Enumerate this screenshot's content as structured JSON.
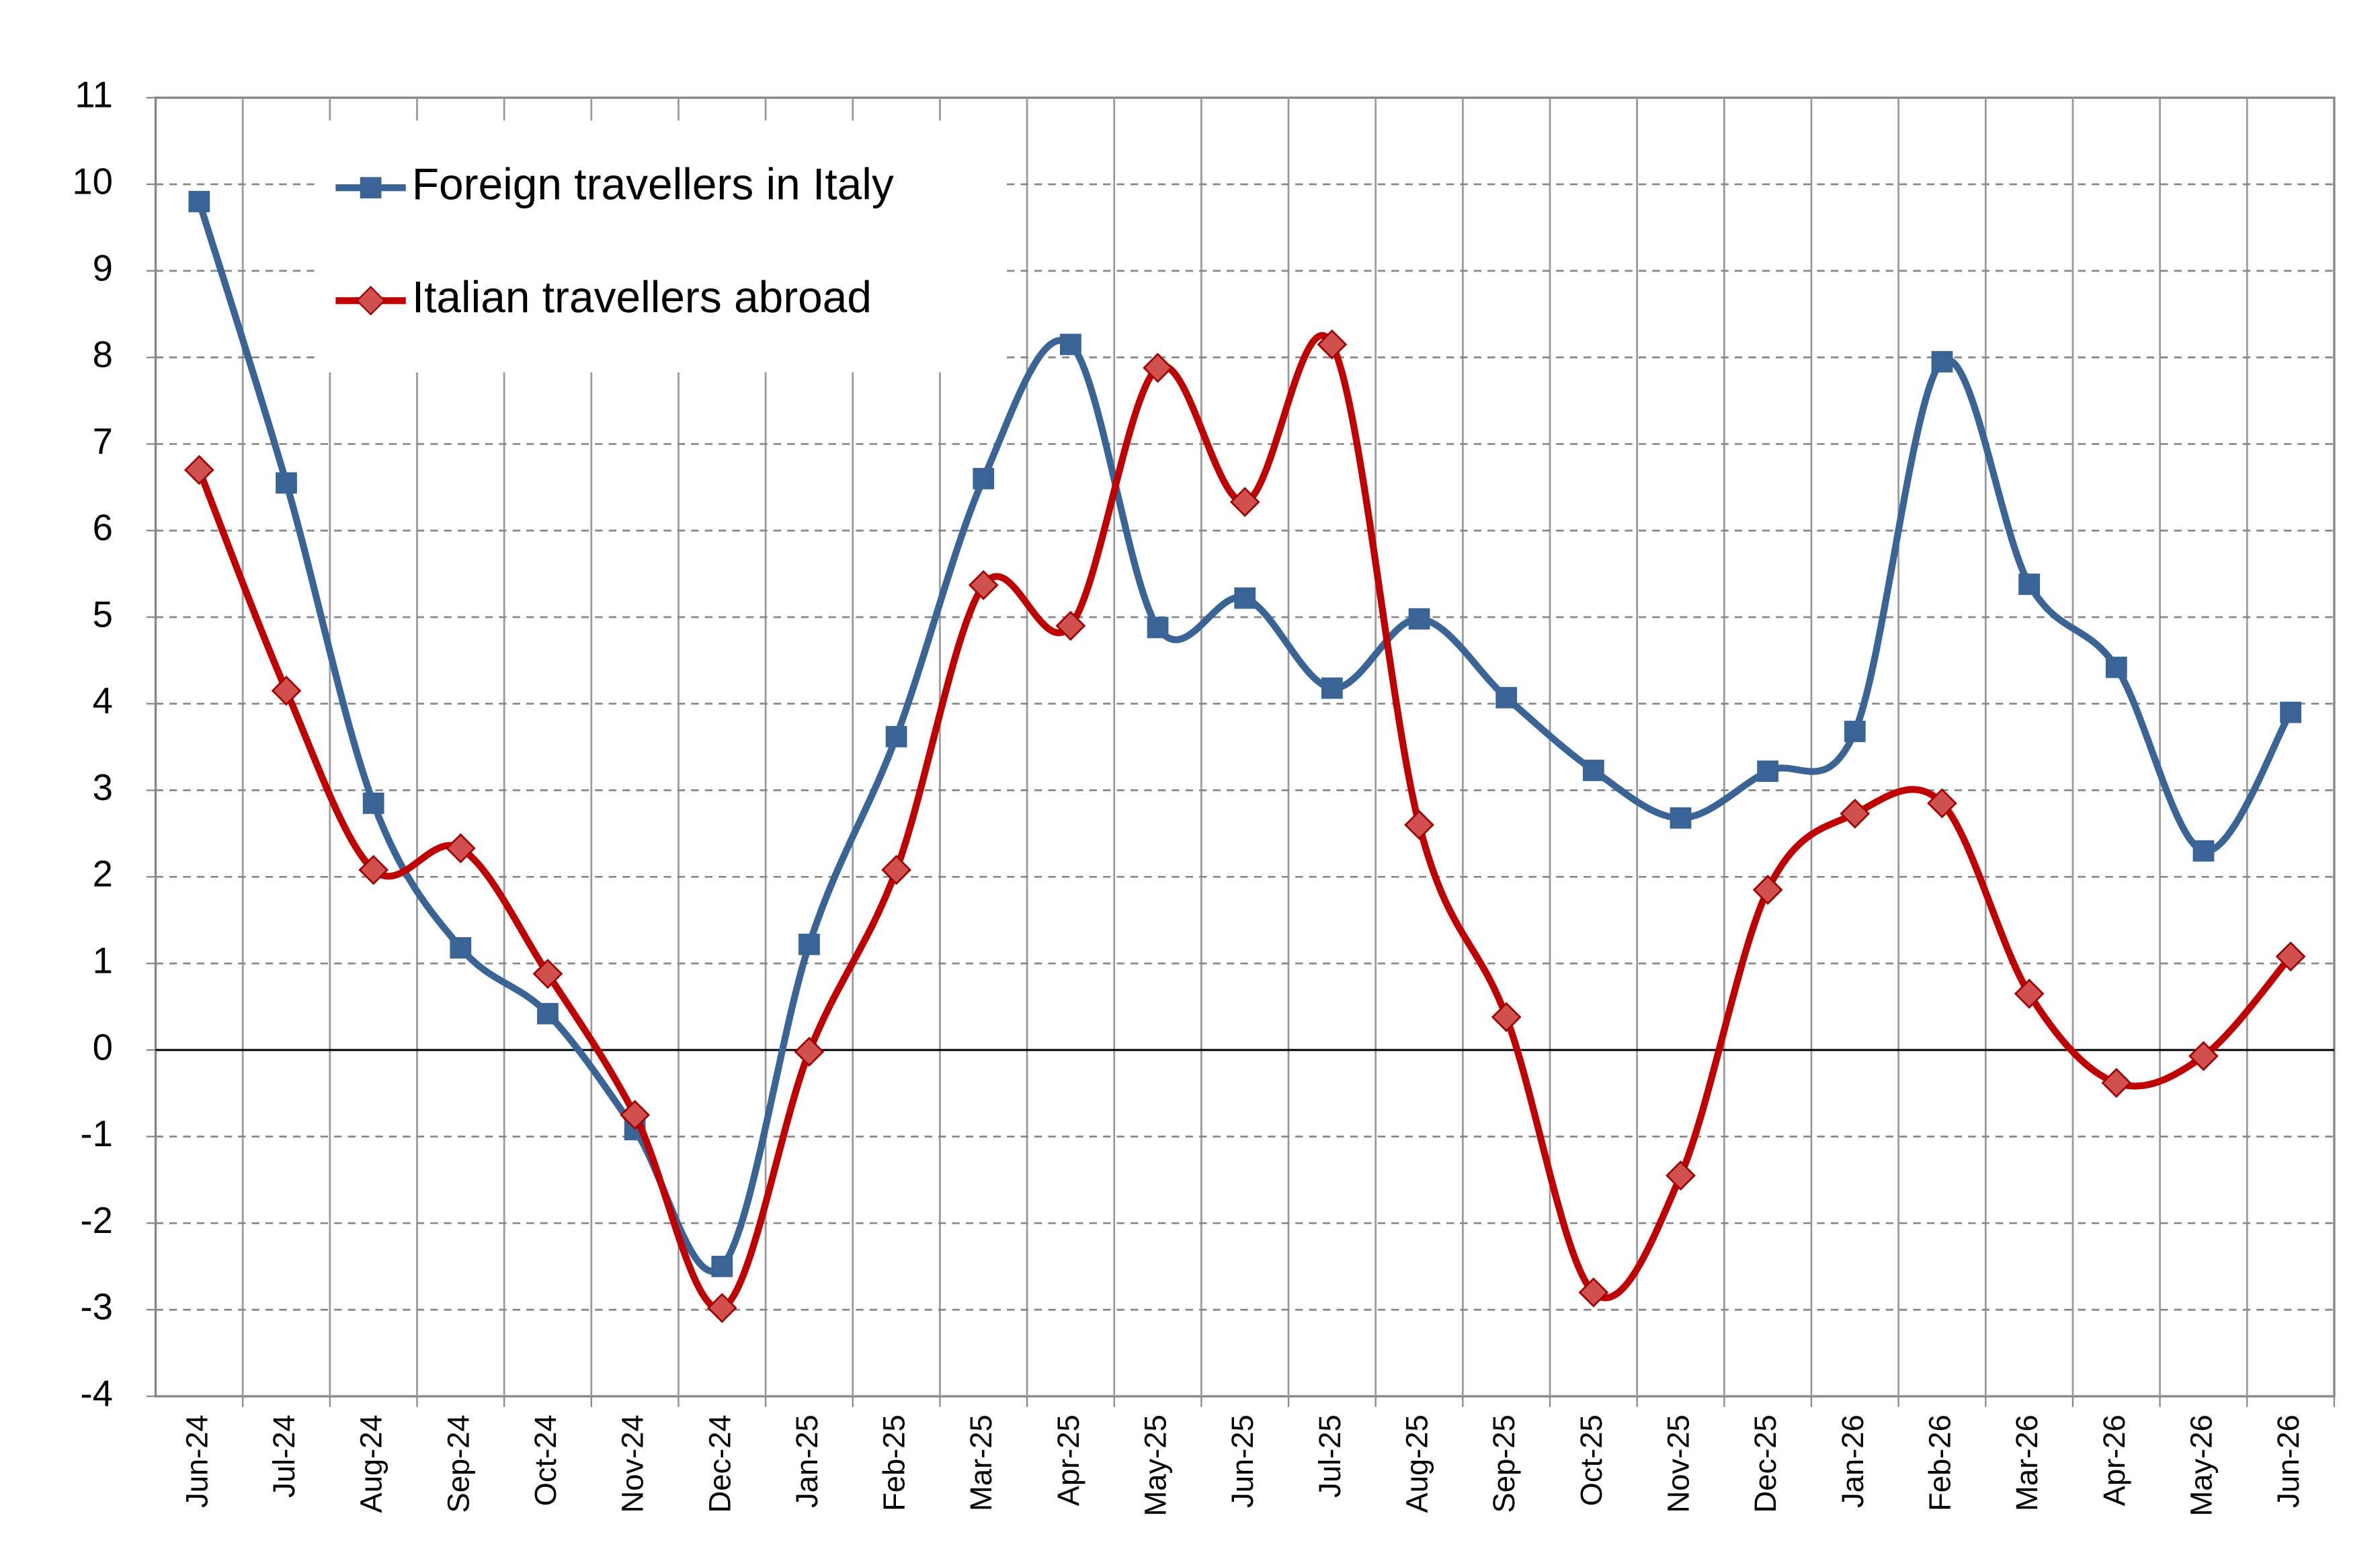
{
  "chart_data": {
    "type": "line",
    "categories": [
      "Jun-24",
      "Jul-24",
      "Aug-24",
      "Sep-24",
      "Oct-24",
      "Nov-24",
      "Dec-24",
      "Jan-25",
      "Feb-25",
      "Mar-25",
      "Apr-25",
      "May-25",
      "Jun-25",
      "Jul-25",
      "Aug-25",
      "Sep-25",
      "Oct-25",
      "Nov-25",
      "Dec-25",
      "Jan-26",
      "Feb-26",
      "Mar-26",
      "Apr-26",
      "May-26",
      "Jun-26"
    ],
    "series": [
      {
        "name": "Foreign travellers in Italy",
        "color": "#3a6496",
        "marker": "square",
        "values": [
          9.8,
          6.55,
          2.85,
          1.18,
          0.42,
          -0.92,
          -2.5,
          1.22,
          3.62,
          6.6,
          8.15,
          4.88,
          5.22,
          4.18,
          4.98,
          4.07,
          3.23,
          2.68,
          3.22,
          3.68,
          7.95,
          5.38,
          4.42,
          2.3,
          3.9
        ]
      },
      {
        "name": "Italian travellers abroad",
        "color": "#c00000",
        "marker": "diamond",
        "values": [
          6.7,
          4.15,
          2.08,
          2.33,
          0.88,
          -0.75,
          -2.98,
          -0.02,
          2.08,
          5.37,
          4.9,
          7.88,
          6.33,
          8.15,
          2.6,
          0.38,
          -2.8,
          -1.45,
          1.85,
          2.73,
          2.85,
          0.65,
          -0.38,
          -0.07,
          1.08
        ]
      }
    ],
    "ylim": [
      -4,
      11
    ],
    "yticks": [
      -4,
      -3,
      -2,
      -1,
      0,
      1,
      2,
      3,
      4,
      5,
      6,
      7,
      8,
      9,
      10,
      11
    ],
    "grid": true,
    "smooth": true,
    "legend": "upper left"
  }
}
